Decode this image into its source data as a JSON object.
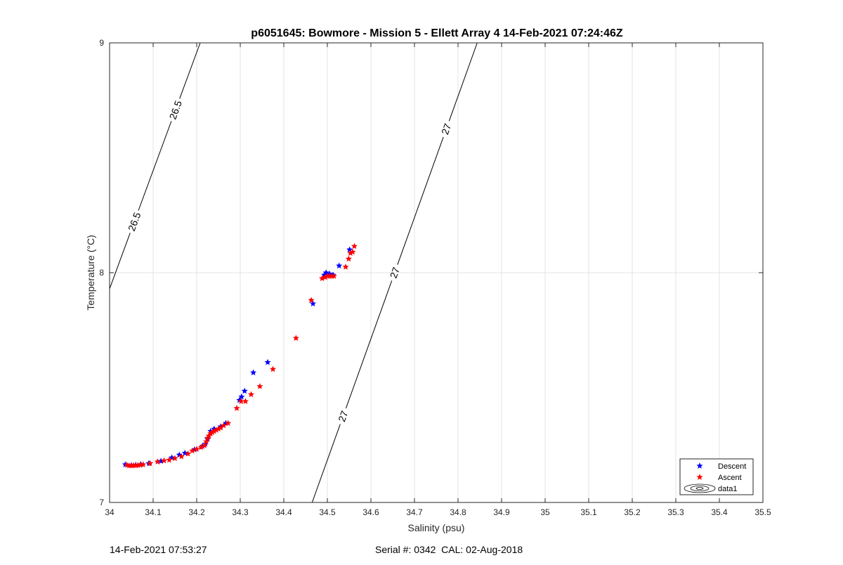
{
  "chart_data": {
    "type": "scatter",
    "title": "p6051645: Bowmore - Mission 5 - Ellett Array 4 14-Feb-2021 07:24:46Z",
    "xlabel": "Salinity (psu)",
    "ylabel": "Temperature (°C)",
    "xlim": [
      34,
      35.5
    ],
    "ylim": [
      7,
      9
    ],
    "xticks": [
      "34",
      "34.1",
      "34.2",
      "34.3",
      "34.4",
      "34.5",
      "34.6",
      "34.7",
      "34.8",
      "34.9",
      "35",
      "35.1",
      "35.2",
      "35.3",
      "35.4",
      "35.5"
    ],
    "yticks": [
      "7",
      "8",
      "9"
    ],
    "grid": true,
    "legend_position": "bottom-right",
    "series": [
      {
        "name": "Descent",
        "color": "#0000ff",
        "marker": "pentagram",
        "points": [
          [
            34.036,
            7.165
          ],
          [
            34.05,
            7.162
          ],
          [
            34.06,
            7.163
          ],
          [
            34.072,
            7.165
          ],
          [
            34.09,
            7.17
          ],
          [
            34.118,
            7.18
          ],
          [
            34.143,
            7.195
          ],
          [
            34.16,
            7.207
          ],
          [
            34.173,
            7.215
          ],
          [
            34.195,
            7.23
          ],
          [
            34.213,
            7.245
          ],
          [
            34.22,
            7.255
          ],
          [
            34.225,
            7.275
          ],
          [
            34.232,
            7.31
          ],
          [
            34.24,
            7.32
          ],
          [
            34.255,
            7.33
          ],
          [
            34.267,
            7.345
          ],
          [
            34.298,
            7.445
          ],
          [
            34.303,
            7.46
          ],
          [
            34.31,
            7.485
          ],
          [
            34.33,
            7.565
          ],
          [
            34.363,
            7.61
          ],
          [
            34.467,
            7.865
          ],
          [
            34.493,
            7.99
          ],
          [
            34.497,
            8.0
          ],
          [
            34.505,
            7.995
          ],
          [
            34.513,
            7.99
          ],
          [
            34.527,
            8.03
          ],
          [
            34.551,
            8.1
          ]
        ]
      },
      {
        "name": "Ascent",
        "color": "#ff0000",
        "marker": "pentagram",
        "points": [
          [
            34.04,
            7.163
          ],
          [
            34.045,
            7.16
          ],
          [
            34.05,
            7.16
          ],
          [
            34.055,
            7.161
          ],
          [
            34.06,
            7.161
          ],
          [
            34.065,
            7.162
          ],
          [
            34.07,
            7.163
          ],
          [
            34.077,
            7.165
          ],
          [
            34.093,
            7.17
          ],
          [
            34.11,
            7.177
          ],
          [
            34.125,
            7.182
          ],
          [
            34.137,
            7.185
          ],
          [
            34.15,
            7.192
          ],
          [
            34.165,
            7.2
          ],
          [
            34.18,
            7.212
          ],
          [
            34.19,
            7.225
          ],
          [
            34.2,
            7.232
          ],
          [
            34.21,
            7.24
          ],
          [
            34.218,
            7.248
          ],
          [
            34.222,
            7.265
          ],
          [
            34.225,
            7.28
          ],
          [
            34.228,
            7.29
          ],
          [
            34.232,
            7.3
          ],
          [
            34.236,
            7.305
          ],
          [
            34.24,
            7.31
          ],
          [
            34.245,
            7.315
          ],
          [
            34.25,
            7.32
          ],
          [
            34.255,
            7.325
          ],
          [
            34.262,
            7.335
          ],
          [
            34.272,
            7.345
          ],
          [
            34.292,
            7.41
          ],
          [
            34.302,
            7.44
          ],
          [
            34.312,
            7.44
          ],
          [
            34.325,
            7.47
          ],
          [
            34.345,
            7.505
          ],
          [
            34.375,
            7.58
          ],
          [
            34.428,
            7.715
          ],
          [
            34.463,
            7.88
          ],
          [
            34.488,
            7.975
          ],
          [
            34.495,
            7.98
          ],
          [
            34.5,
            7.985
          ],
          [
            34.505,
            7.985
          ],
          [
            34.51,
            7.985
          ],
          [
            34.515,
            7.985
          ],
          [
            34.542,
            8.025
          ],
          [
            34.549,
            8.06
          ],
          [
            34.553,
            8.085
          ],
          [
            34.558,
            8.09
          ],
          [
            34.562,
            8.115
          ]
        ]
      },
      {
        "name": "data1",
        "type": "contour",
        "color": "#000000",
        "levels": [
          26.5,
          27
        ],
        "lines": [
          {
            "level": "26.5",
            "points": [
              [
                34.0,
                7.93
              ],
              [
                34.208,
                9.0
              ]
            ],
            "labels": [
              "26.5",
              "26.5"
            ]
          },
          {
            "level": "27",
            "points": [
              [
                34.465,
                7.0
              ],
              [
                34.844,
                9.0
              ]
            ],
            "labels": [
              "27",
              "27",
              "27"
            ]
          }
        ]
      }
    ]
  },
  "footer": {
    "timestamp": "14-Feb-2021 07:53:27",
    "serial": "Serial #: 0342  CAL: 02-Aug-2018"
  }
}
